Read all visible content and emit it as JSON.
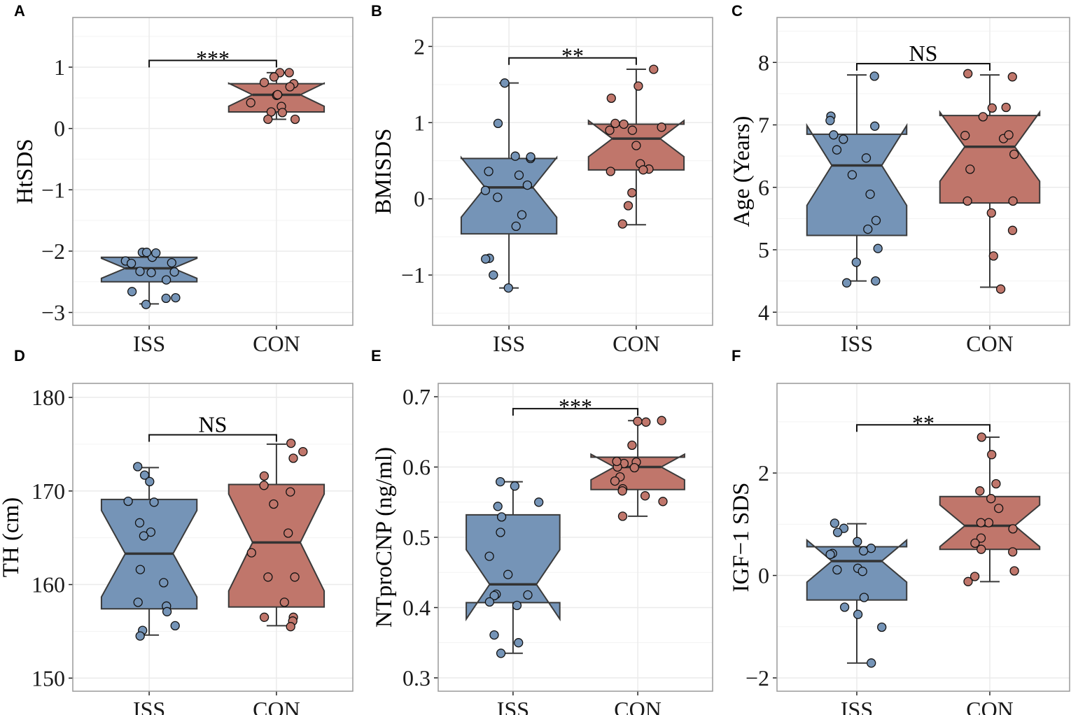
{
  "colors": {
    "ISS": "#7594b7",
    "CON": "#c0766b",
    "median": "#333333",
    "outline": "#3a3a3a",
    "grid": "#ebebeb",
    "frame": "#9a9a9a"
  },
  "chart_data": [
    {
      "panel": "A",
      "type": "boxplot-notched-jitter",
      "ylabel": "HtSDS",
      "categories": [
        "ISS",
        "CON"
      ],
      "ylim": [
        -3.21,
        1.81
      ],
      "yticks": [
        1,
        0,
        -1,
        -2,
        -3
      ],
      "ytick_labels": [
        "1",
        "0",
        "−1",
        "−2",
        "−3"
      ],
      "grid": true,
      "boxes": [
        {
          "group": "ISS",
          "whisker_low": -2.86,
          "q1": -2.5,
          "median": -2.28,
          "q3": -2.1,
          "whisker_high": -2.02
        },
        {
          "group": "CON",
          "whisker_low": 0.15,
          "q1": 0.27,
          "median": 0.55,
          "q3": 0.73,
          "whisker_high": 0.91
        }
      ],
      "points": {
        "ISS": [
          -2.19,
          -2.16,
          -2.1,
          -2.02,
          -2.02,
          -2.03,
          -2.2,
          -2.33,
          -2.35,
          -2.34,
          -2.47,
          -2.66,
          -2.76,
          -2.77,
          -2.87
        ],
        "CON": [
          0.91,
          0.91,
          0.84,
          0.75,
          0.73,
          0.68,
          0.54,
          0.55,
          0.55,
          0.42,
          0.36,
          0.26,
          0.27,
          0.15,
          0.15
        ]
      },
      "significance": {
        "label": "***",
        "bracket_y": 1.11
      }
    },
    {
      "panel": "B",
      "type": "boxplot-notched-jitter",
      "ylabel": "BMISDS",
      "categories": [
        "ISS",
        "CON"
      ],
      "ylim": [
        -1.66,
        2.38
      ],
      "yticks": [
        2,
        1,
        0,
        -1
      ],
      "ytick_labels": [
        "2",
        "1",
        "0",
        "−1"
      ],
      "grid": true,
      "boxes": [
        {
          "group": "ISS",
          "whisker_low": -1.17,
          "q1": -0.46,
          "median": 0.15,
          "q3": 0.53,
          "whisker_high": 1.52
        },
        {
          "group": "CON",
          "whisker_low": -0.34,
          "q1": 0.38,
          "median": 0.79,
          "q3": 0.98,
          "whisker_high": 1.7
        }
      ],
      "points": {
        "ISS": [
          1.52,
          0.99,
          0.53,
          0.56,
          0.55,
          0.31,
          0.36,
          0.18,
          0.11,
          0.02,
          -0.21,
          -0.36,
          -0.78,
          -0.79,
          -1.0,
          -1.17
        ],
        "CON": [
          1.7,
          1.48,
          1.32,
          0.99,
          0.98,
          0.94,
          0.9,
          0.9,
          0.7,
          0.46,
          0.39,
          0.38,
          0.36,
          0.08,
          -0.09,
          -0.33
        ]
      },
      "significance": {
        "label": "**",
        "bracket_y": 1.85
      }
    },
    {
      "panel": "C",
      "type": "boxplot-notched-jitter",
      "ylabel": "Age (Years)",
      "categories": [
        "ISS",
        "CON"
      ],
      "ylim": [
        3.79,
        8.72
      ],
      "yticks": [
        8,
        7,
        6,
        5,
        4
      ],
      "ytick_labels": [
        "8",
        "7",
        "6",
        "5",
        "4"
      ],
      "grid": true,
      "boxes": [
        {
          "group": "ISS",
          "whisker_low": 4.5,
          "q1": 5.23,
          "median": 6.35,
          "q3": 6.85,
          "whisker_high": 7.8
        },
        {
          "group": "CON",
          "whisker_low": 4.4,
          "q1": 5.75,
          "median": 6.65,
          "q3": 7.15,
          "whisker_high": 7.8
        }
      ],
      "points": {
        "ISS": [
          7.78,
          7.14,
          7.07,
          6.98,
          6.84,
          6.77,
          6.6,
          6.47,
          6.2,
          5.89,
          5.47,
          5.33,
          5.02,
          4.8,
          4.5,
          4.47
        ],
        "CON": [
          7.82,
          7.77,
          7.27,
          7.28,
          7.13,
          6.78,
          6.83,
          6.84,
          6.53,
          6.29,
          5.78,
          5.78,
          5.59,
          5.31,
          4.9,
          4.37
        ]
      },
      "significance": {
        "label": "NS",
        "bracket_y": 7.98
      }
    },
    {
      "panel": "D",
      "type": "boxplot-notched-jitter",
      "ylabel": "TH (cm)",
      "categories": [
        "ISS",
        "CON"
      ],
      "ylim": [
        148.6,
        181.5
      ],
      "yticks": [
        180,
        170,
        160,
        150
      ],
      "ytick_labels": [
        "180",
        "170",
        "160",
        "150"
      ],
      "grid": true,
      "boxes": [
        {
          "group": "ISS",
          "whisker_low": 154.6,
          "q1": 157.4,
          "median": 163.3,
          "q3": 169.1,
          "whisker_high": 172.5
        },
        {
          "group": "CON",
          "whisker_low": 155.6,
          "q1": 157.6,
          "median": 164.5,
          "q3": 170.7,
          "whisker_high": 175.0
        }
      ],
      "points": {
        "ISS": [
          172.6,
          171.7,
          171.0,
          168.9,
          168.8,
          166.6,
          165.6,
          165.2,
          161.6,
          160.2,
          158.1,
          157.7,
          157.1,
          155.6,
          155.1,
          154.5
        ],
        "CON": [
          175.1,
          174.2,
          173.5,
          171.6,
          170.6,
          169.9,
          168.6,
          165.5,
          163.4,
          160.8,
          160.8,
          158.1,
          156.5,
          156.5,
          156.1,
          155.5
        ]
      },
      "significance": {
        "label": "NS",
        "bracket_y": 176.0
      }
    },
    {
      "panel": "E",
      "type": "boxplot-notched-jitter",
      "ylabel": "NTproCNP (ng/ml)",
      "categories": [
        "ISS",
        "CON"
      ],
      "ylim": [
        0.281,
        0.719
      ],
      "yticks": [
        0.7,
        0.6,
        0.5,
        0.4,
        0.3
      ],
      "ytick_labels": [
        "0.7",
        "0.6",
        "0.5",
        "0.4",
        "0.3"
      ],
      "grid": true,
      "boxes": [
        {
          "group": "ISS",
          "whisker_low": 0.335,
          "q1": 0.407,
          "median": 0.433,
          "q3": 0.532,
          "whisker_high": 0.579
        },
        {
          "group": "CON",
          "whisker_low": 0.53,
          "q1": 0.568,
          "median": 0.6,
          "q3": 0.614,
          "whisker_high": 0.666
        }
      ],
      "points": {
        "ISS": [
          0.579,
          0.573,
          0.55,
          0.544,
          0.529,
          0.507,
          0.473,
          0.447,
          0.419,
          0.417,
          0.418,
          0.408,
          0.403,
          0.361,
          0.35,
          0.335
        ],
        "CON": [
          0.664,
          0.666,
          0.665,
          0.631,
          0.607,
          0.605,
          0.6,
          0.599,
          0.608,
          0.586,
          0.58,
          0.569,
          0.566,
          0.559,
          0.551,
          0.53
        ]
      },
      "significance": {
        "label": "***",
        "bracket_y": 0.683
      }
    },
    {
      "panel": "F",
      "type": "boxplot-notched-jitter",
      "ylabel": "IGF−1 SDS",
      "categories": [
        "ISS",
        "CON"
      ],
      "ylim": [
        -2.26,
        3.75
      ],
      "yticks": [
        2,
        0,
        -2
      ],
      "ytick_labels": [
        "2",
        "0",
        "−2"
      ],
      "grid": true,
      "boxes": [
        {
          "group": "ISS",
          "whisker_low": -1.71,
          "q1": -0.48,
          "median": 0.28,
          "q3": 0.56,
          "whisker_high": 1.01
        },
        {
          "group": "CON",
          "whisker_low": -0.12,
          "q1": 0.51,
          "median": 0.97,
          "q3": 1.54,
          "whisker_high": 2.7
        }
      ],
      "points": {
        "ISS": [
          1.02,
          0.92,
          0.84,
          0.66,
          0.53,
          0.48,
          0.43,
          0.41,
          0.14,
          0.11,
          0.08,
          -0.43,
          -0.62,
          -0.76,
          -1.01,
          -1.71
        ],
        "CON": [
          2.7,
          2.36,
          1.79,
          1.65,
          1.5,
          1.31,
          1.03,
          1.03,
          0.91,
          0.73,
          0.63,
          0.51,
          0.46,
          0.09,
          -0.02,
          -0.12
        ]
      },
      "significance": {
        "label": "**",
        "bracket_y": 2.94
      }
    }
  ]
}
